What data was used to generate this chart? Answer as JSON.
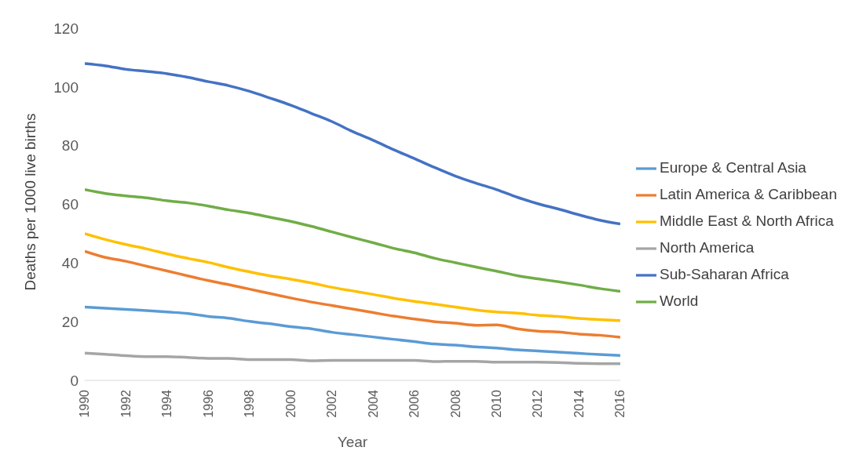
{
  "chart_data": {
    "type": "line",
    "xlabel": "Year",
    "ylabel": "Deaths per 1000 live births",
    "x": [
      1990,
      1991,
      1992,
      1993,
      1994,
      1995,
      1996,
      1997,
      1998,
      1999,
      2000,
      2001,
      2002,
      2003,
      2004,
      2005,
      2006,
      2007,
      2008,
      2009,
      2010,
      2011,
      2012,
      2013,
      2014,
      2015,
      2016
    ],
    "series": [
      {
        "name": "Europe & Central Asia",
        "color": "#5b9bd5",
        "values": [
          25,
          24.6,
          24.2,
          23.8,
          23.3,
          22.8,
          21.8,
          21.2,
          20.1,
          19.3,
          18.3,
          17.6,
          16.4,
          15.6,
          14.8,
          14,
          13.2,
          12.4,
          12,
          11.4,
          11,
          10.4,
          10,
          9.6,
          9.2,
          8.8,
          8.5
        ]
      },
      {
        "name": "Latin America & Caribbean",
        "color": "#ed7d31",
        "values": [
          44,
          41.9,
          40.6,
          38.9,
          37.3,
          35.6,
          34,
          32.6,
          31.1,
          29.6,
          28.1,
          26.7,
          25.5,
          24.3,
          23.1,
          21.9,
          20.9,
          20,
          19.5,
          18.8,
          18.9,
          17.6,
          16.8,
          16.5,
          15.8,
          15.4,
          14.7
        ]
      },
      {
        "name": "North America",
        "color": "#a5a5a5",
        "values": [
          9.3,
          8.9,
          8.4,
          8.1,
          8.1,
          7.8,
          7.5,
          7.5,
          7.1,
          7.1,
          7.1,
          6.7,
          6.8,
          6.8,
          6.8,
          6.8,
          6.8,
          6.4,
          6.5,
          6.5,
          6.2,
          6.2,
          6.2,
          6.1,
          5.8,
          5.7,
          5.7
        ]
      },
      {
        "name": "Middle East & North Africa",
        "color": "#ffc000",
        "values": [
          50,
          48,
          46.3,
          44.8,
          43.1,
          41.6,
          40.2,
          38.5,
          37,
          35.6,
          34.5,
          33.2,
          31.7,
          30.5,
          29.3,
          28,
          26.9,
          26,
          25,
          24,
          23.3,
          22.9,
          22.2,
          21.8,
          21.1,
          20.7,
          20.4
        ]
      },
      {
        "name": "Sub-Saharan Africa",
        "color": "#4472c4",
        "values": [
          108,
          107.2,
          106,
          105.3,
          104.5,
          103.3,
          101.8,
          100.4,
          98.5,
          96.2,
          93.8,
          91,
          88.2,
          84.8,
          81.8,
          78.6,
          75.6,
          72.5,
          69.6,
          67.2,
          65,
          62.4,
          60.2,
          58.4,
          56.4,
          54.6,
          53.3
        ]
      },
      {
        "name": "World",
        "color": "#70ad47",
        "values": [
          65,
          63.7,
          62.9,
          62.2,
          61.2,
          60.5,
          59.4,
          58.1,
          57,
          55.6,
          54.2,
          52.5,
          50.6,
          48.7,
          46.9,
          45,
          43.5,
          41.6,
          40.1,
          38.6,
          37.2,
          35.7,
          34.6,
          33.6,
          32.5,
          31.3,
          30.3
        ]
      }
    ],
    "xlim": [
      1990,
      2016
    ],
    "xticks": [
      1990,
      1992,
      1994,
      1996,
      1998,
      2000,
      2002,
      2004,
      2006,
      2008,
      2010,
      2012,
      2014,
      2016
    ],
    "ylim": [
      0,
      120
    ],
    "yticks": [
      0,
      20,
      40,
      60,
      80,
      100,
      120
    ],
    "grid": false,
    "legend": "right",
    "marker": "none",
    "line_style": "solid"
  }
}
